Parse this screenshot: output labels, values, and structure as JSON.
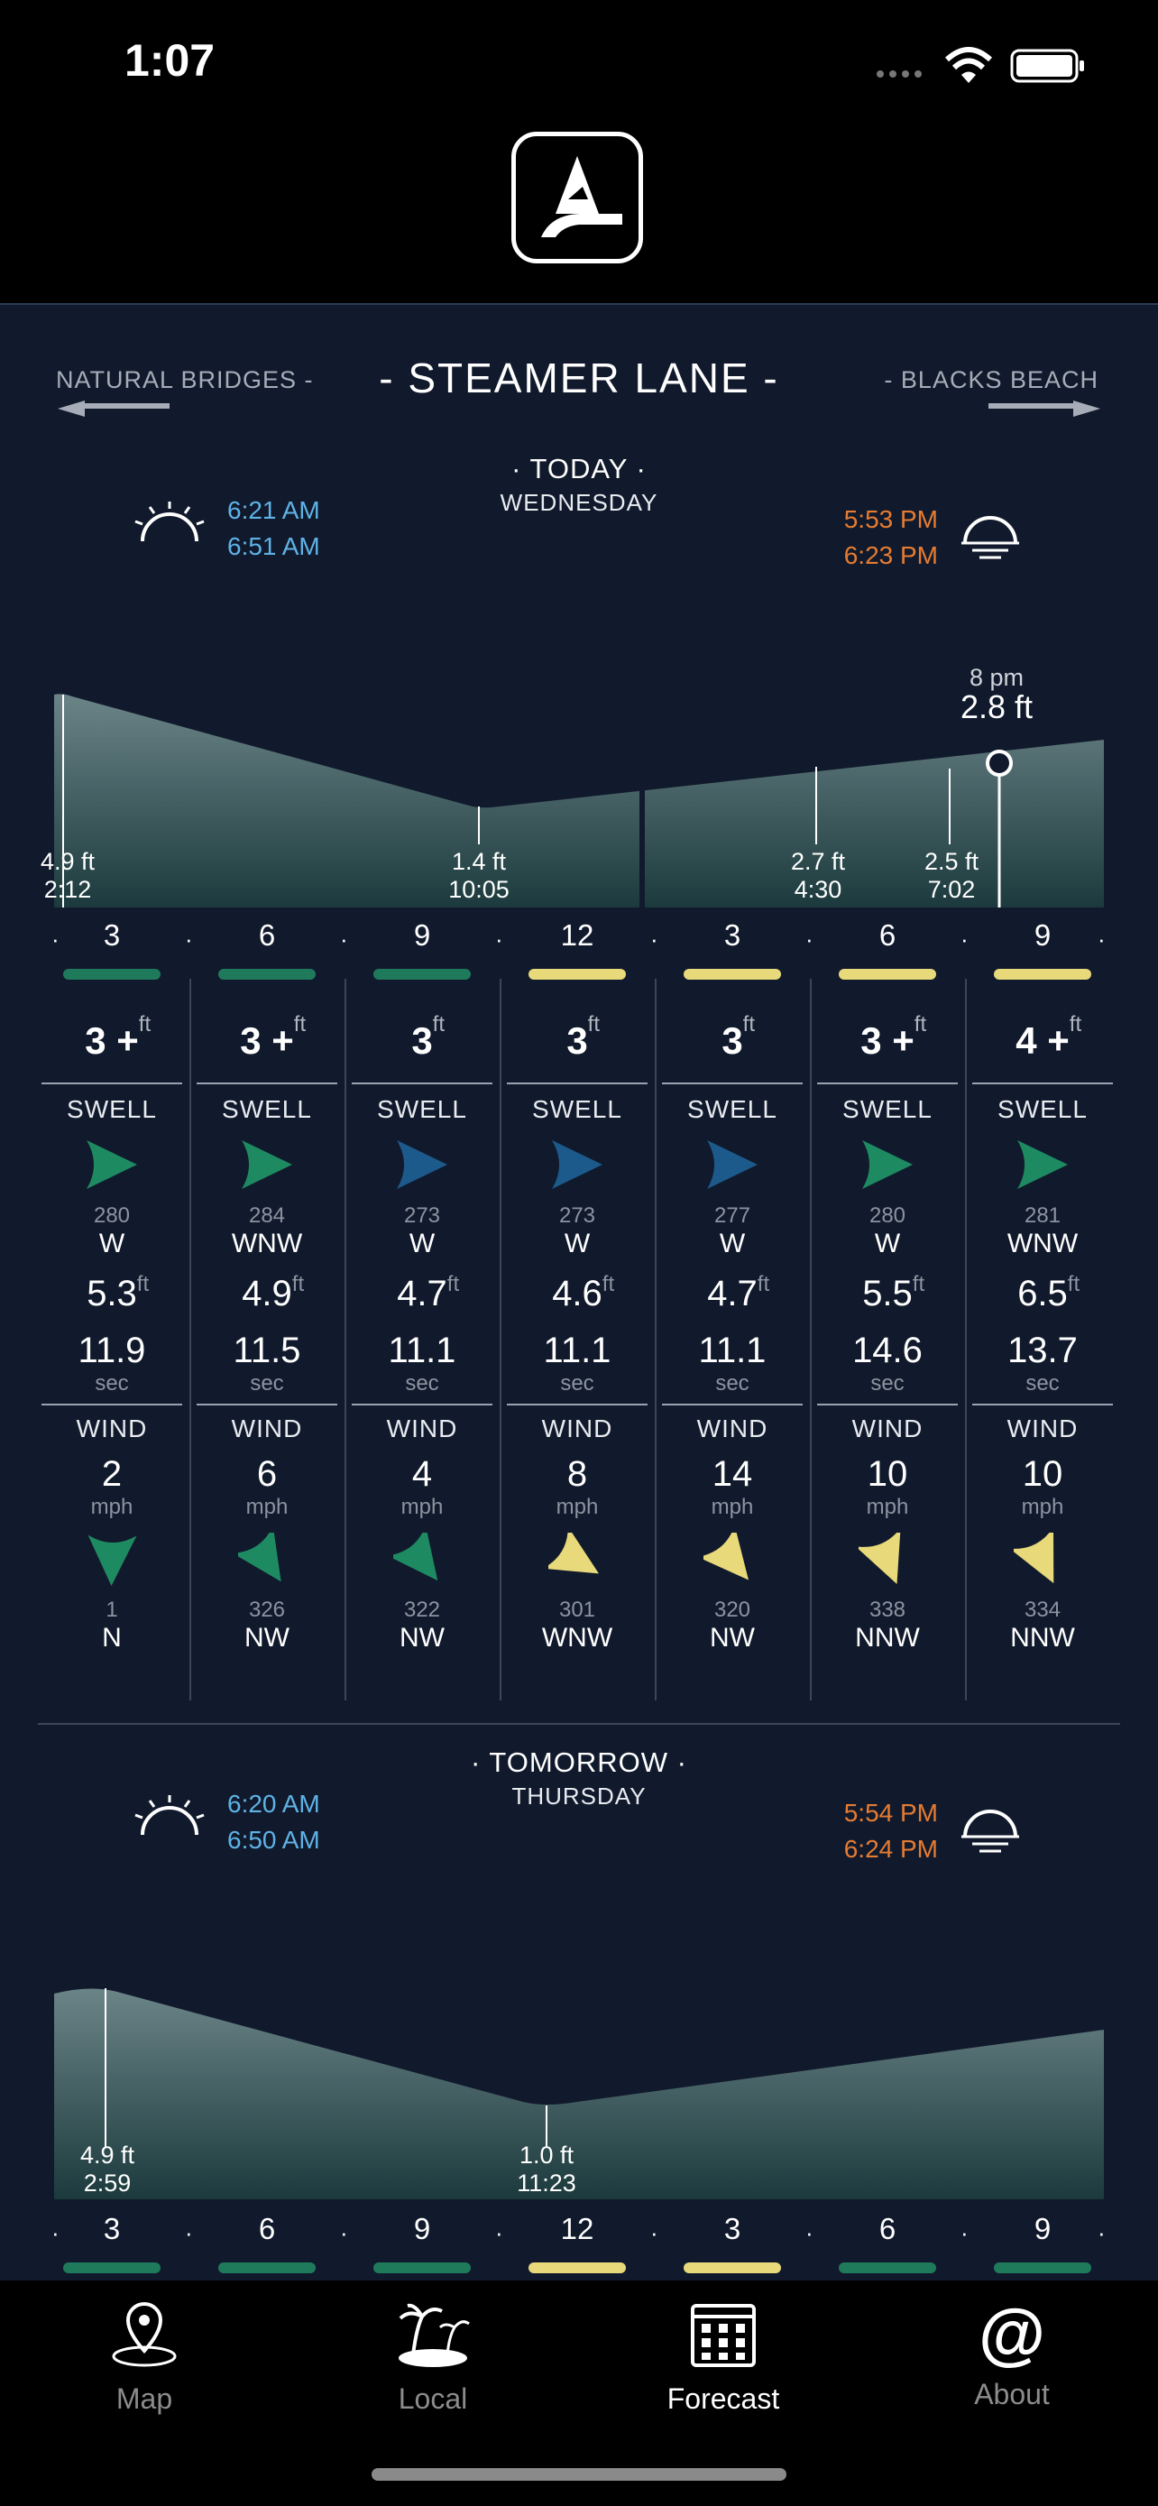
{
  "status_bar": {
    "time": "1:07"
  },
  "header": {
    "logo_icon": "surf-logo-icon"
  },
  "nav": {
    "prev_label": "NATURAL BRIDGES -",
    "title": "- STEAMER LANE -",
    "next_label": "- BLACKS BEACH"
  },
  "today": {
    "heading": "· TODAY ·",
    "weekday": "WEDNESDAY",
    "sunrise_times": [
      "6:21 AM",
      "6:51 AM"
    ],
    "sunset_times": [
      "5:53 PM",
      "6:23 PM"
    ],
    "tide_marker": {
      "time": "8 pm",
      "height": "2.8 ft"
    },
    "tide_points": [
      {
        "height": "4.9 ft",
        "time": "2:12"
      },
      {
        "height": "1.4 ft",
        "time": "10:05"
      },
      {
        "height": "2.7 ft",
        "time": "4:30"
      },
      {
        "height": "2.5 ft",
        "time": "7:02"
      }
    ],
    "hours": [
      "3",
      "6",
      "9",
      "12",
      "3",
      "6",
      "9"
    ],
    "quality_colors": [
      "#1f7a5c",
      "#1f7a5c",
      "#1f7a5c",
      "#e8d97a",
      "#e8d97a",
      "#e8d97a",
      "#e8d97a"
    ],
    "columns": [
      {
        "size": "3 +",
        "unit": "ft",
        "swell_label": "SWELL",
        "swell_color": "#1e8a62",
        "swell_deg": "280",
        "swell_dir": "W",
        "swell_ht": "5.3",
        "swell_ht_unit": "ft",
        "period": "11.9",
        "period_unit": "sec",
        "wind_label": "WIND",
        "wind_speed": "2",
        "wind_unit": "mph",
        "wind_color": "#1e8a62",
        "wind_deg": "1",
        "wind_dir": "N"
      },
      {
        "size": "3 +",
        "unit": "ft",
        "swell_label": "SWELL",
        "swell_color": "#1e8a62",
        "swell_deg": "284",
        "swell_dir": "WNW",
        "swell_ht": "4.9",
        "swell_ht_unit": "ft",
        "period": "11.5",
        "period_unit": "sec",
        "wind_label": "WIND",
        "wind_speed": "6",
        "wind_unit": "mph",
        "wind_color": "#1e8a62",
        "wind_deg": "326",
        "wind_dir": "NW"
      },
      {
        "size": "3",
        "unit": "ft",
        "swell_label": "SWELL",
        "swell_color": "#1d5a8c",
        "swell_deg": "273",
        "swell_dir": "W",
        "swell_ht": "4.7",
        "swell_ht_unit": "ft",
        "period": "11.1",
        "period_unit": "sec",
        "wind_label": "WIND",
        "wind_speed": "4",
        "wind_unit": "mph",
        "wind_color": "#1e8a62",
        "wind_deg": "322",
        "wind_dir": "NW"
      },
      {
        "size": "3",
        "unit": "ft",
        "swell_label": "SWELL",
        "swell_color": "#1d5a8c",
        "swell_deg": "273",
        "swell_dir": "W",
        "swell_ht": "4.6",
        "swell_ht_unit": "ft",
        "period": "11.1",
        "period_unit": "sec",
        "wind_label": "WIND",
        "wind_speed": "8",
        "wind_unit": "mph",
        "wind_color": "#e8d97a",
        "wind_deg": "301",
        "wind_dir": "WNW"
      },
      {
        "size": "3",
        "unit": "ft",
        "swell_label": "SWELL",
        "swell_color": "#1d5a8c",
        "swell_deg": "277",
        "swell_dir": "W",
        "swell_ht": "4.7",
        "swell_ht_unit": "ft",
        "period": "11.1",
        "period_unit": "sec",
        "wind_label": "WIND",
        "wind_speed": "14",
        "wind_unit": "mph",
        "wind_color": "#e8d97a",
        "wind_deg": "320",
        "wind_dir": "NW"
      },
      {
        "size": "3 +",
        "unit": "ft",
        "swell_label": "SWELL",
        "swell_color": "#1e8a62",
        "swell_deg": "280",
        "swell_dir": "W",
        "swell_ht": "5.5",
        "swell_ht_unit": "ft",
        "period": "14.6",
        "period_unit": "sec",
        "wind_label": "WIND",
        "wind_speed": "10",
        "wind_unit": "mph",
        "wind_color": "#e8d97a",
        "wind_deg": "338",
        "wind_dir": "NNW"
      },
      {
        "size": "4 +",
        "unit": "ft",
        "swell_label": "SWELL",
        "swell_color": "#1e8a62",
        "swell_deg": "281",
        "swell_dir": "WNW",
        "swell_ht": "6.5",
        "swell_ht_unit": "ft",
        "period": "13.7",
        "period_unit": "sec",
        "wind_label": "WIND",
        "wind_speed": "10",
        "wind_unit": "mph",
        "wind_color": "#e8d97a",
        "wind_deg": "334",
        "wind_dir": "NNW"
      }
    ]
  },
  "tomorrow": {
    "heading": "· TOMORROW ·",
    "weekday": "THURSDAY",
    "sunrise_times": [
      "6:20 AM",
      "6:50 AM"
    ],
    "sunset_times": [
      "5:54 PM",
      "6:24 PM"
    ],
    "tide_points": [
      {
        "height": "4.9 ft",
        "time": "2:59"
      },
      {
        "height": "1.0 ft",
        "time": "11:23"
      }
    ],
    "hours": [
      "3",
      "6",
      "9",
      "12",
      "3",
      "6",
      "9"
    ],
    "quality_colors": [
      "#1f7a5c",
      "#1f7a5c",
      "#1f7a5c",
      "#e8d97a",
      "#e8d97a",
      "#1f7a5c",
      "#1f7a5c"
    ]
  },
  "tab_bar": {
    "tabs": [
      {
        "label": "Map",
        "icon": "map-pin-icon",
        "active": false
      },
      {
        "label": "Local",
        "icon": "palm-island-icon",
        "active": false
      },
      {
        "label": "Forecast",
        "icon": "calendar-grid-icon",
        "active": true
      },
      {
        "label": "About",
        "icon": "at-sign-icon",
        "active": false
      }
    ]
  }
}
